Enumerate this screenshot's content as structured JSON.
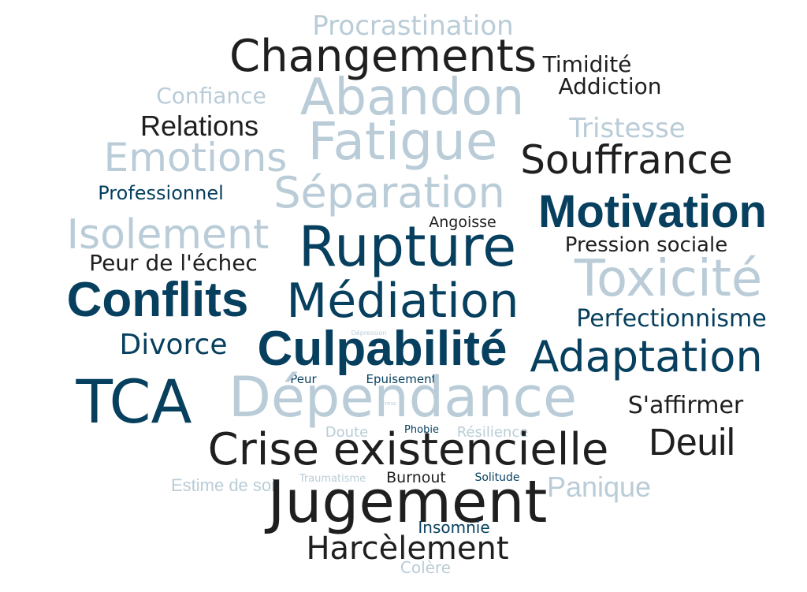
{
  "word_cloud": {
    "colors": {
      "light": "#b9ccd7",
      "black": "#1f1f1f",
      "navy": "#073f5e"
    },
    "words": [
      "Procrastination",
      "Changements",
      "Timidité",
      "Addiction",
      "Confiance",
      "Abandon",
      "Relations",
      "Tristesse",
      "Emotions",
      "Fatigue",
      "Souffrance",
      "Professionnel",
      "Séparation",
      "Motivation",
      "Angoisse",
      "Isolement",
      "Rupture",
      "Pression sociale",
      "Peur de l'échec",
      "Toxicité",
      "Conflits",
      "Médiation",
      "Perfectionnisme",
      "Dépression",
      "Divorce",
      "Culpabilité",
      "Adaptation",
      "Peur",
      "Epuisement",
      "TCA",
      "Dépendance",
      "S'affirmer",
      "Stress",
      "Doute",
      "Phobie",
      "Résilience",
      "Crise existencielle",
      "Deuil",
      "Estime de soi",
      "Traumatisme",
      "Burnout",
      "Solitude",
      "Panique",
      "Jugement",
      "Insomnie",
      "Harcèlement",
      "Colère"
    ]
  }
}
